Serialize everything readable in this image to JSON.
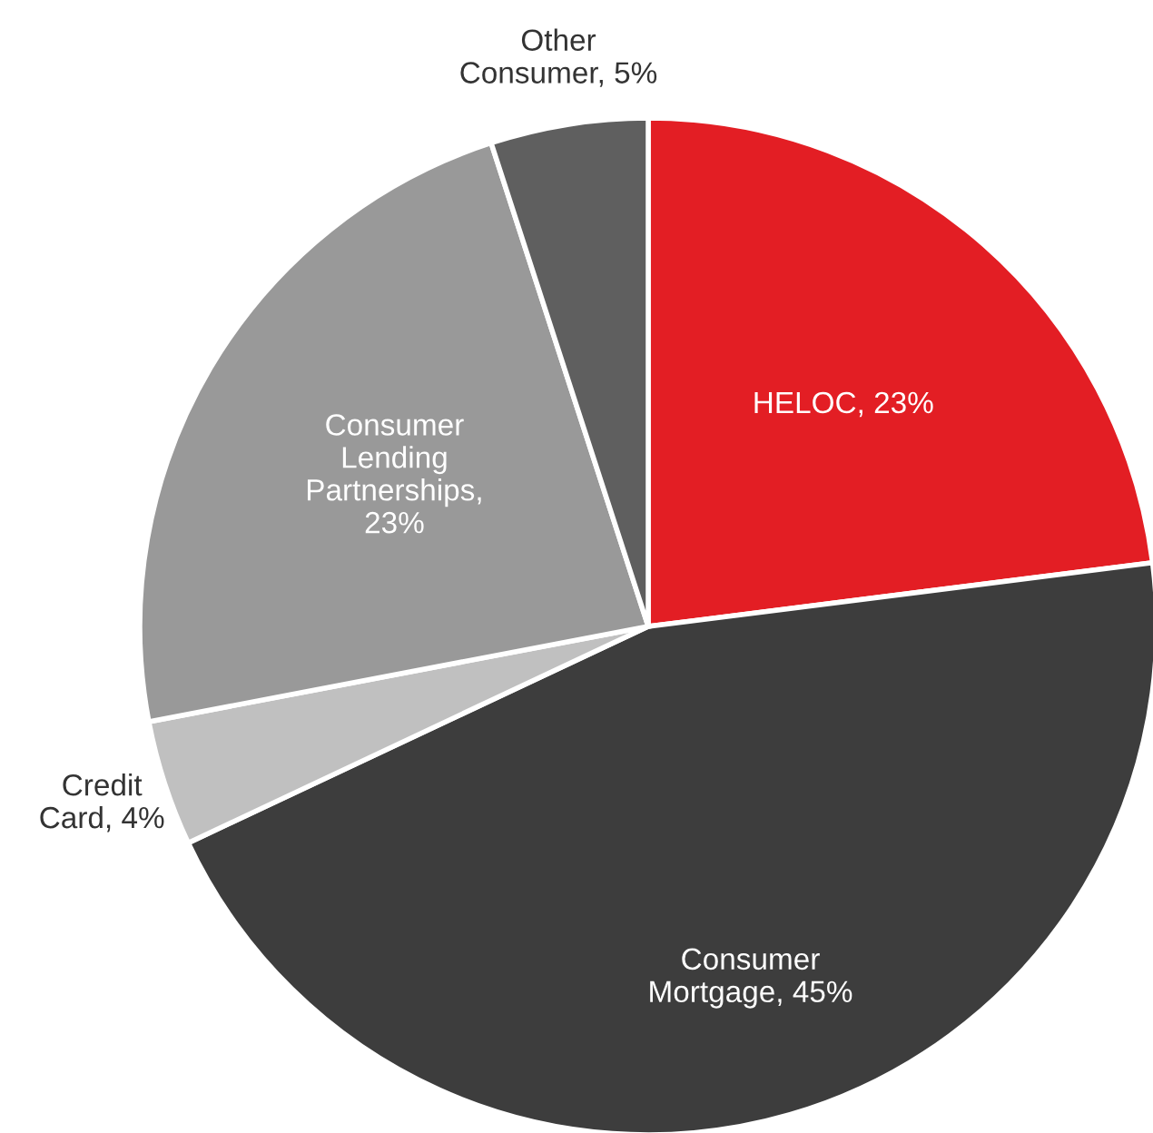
{
  "chart_data": {
    "type": "pie",
    "categories": [
      "HELOC, 23%",
      "Consumer\nMortgage, 45%",
      "Credit\nCard, 4%",
      "Consumer\nLending\nPartnerships,\n23%",
      "Other\nConsumer, 5%"
    ],
    "values": [
      23,
      45,
      4,
      23,
      5
    ],
    "colors": [
      "#e31e24",
      "#3d3d3d",
      "#c0c0c0",
      "#999999",
      "#5f5f5f"
    ]
  }
}
